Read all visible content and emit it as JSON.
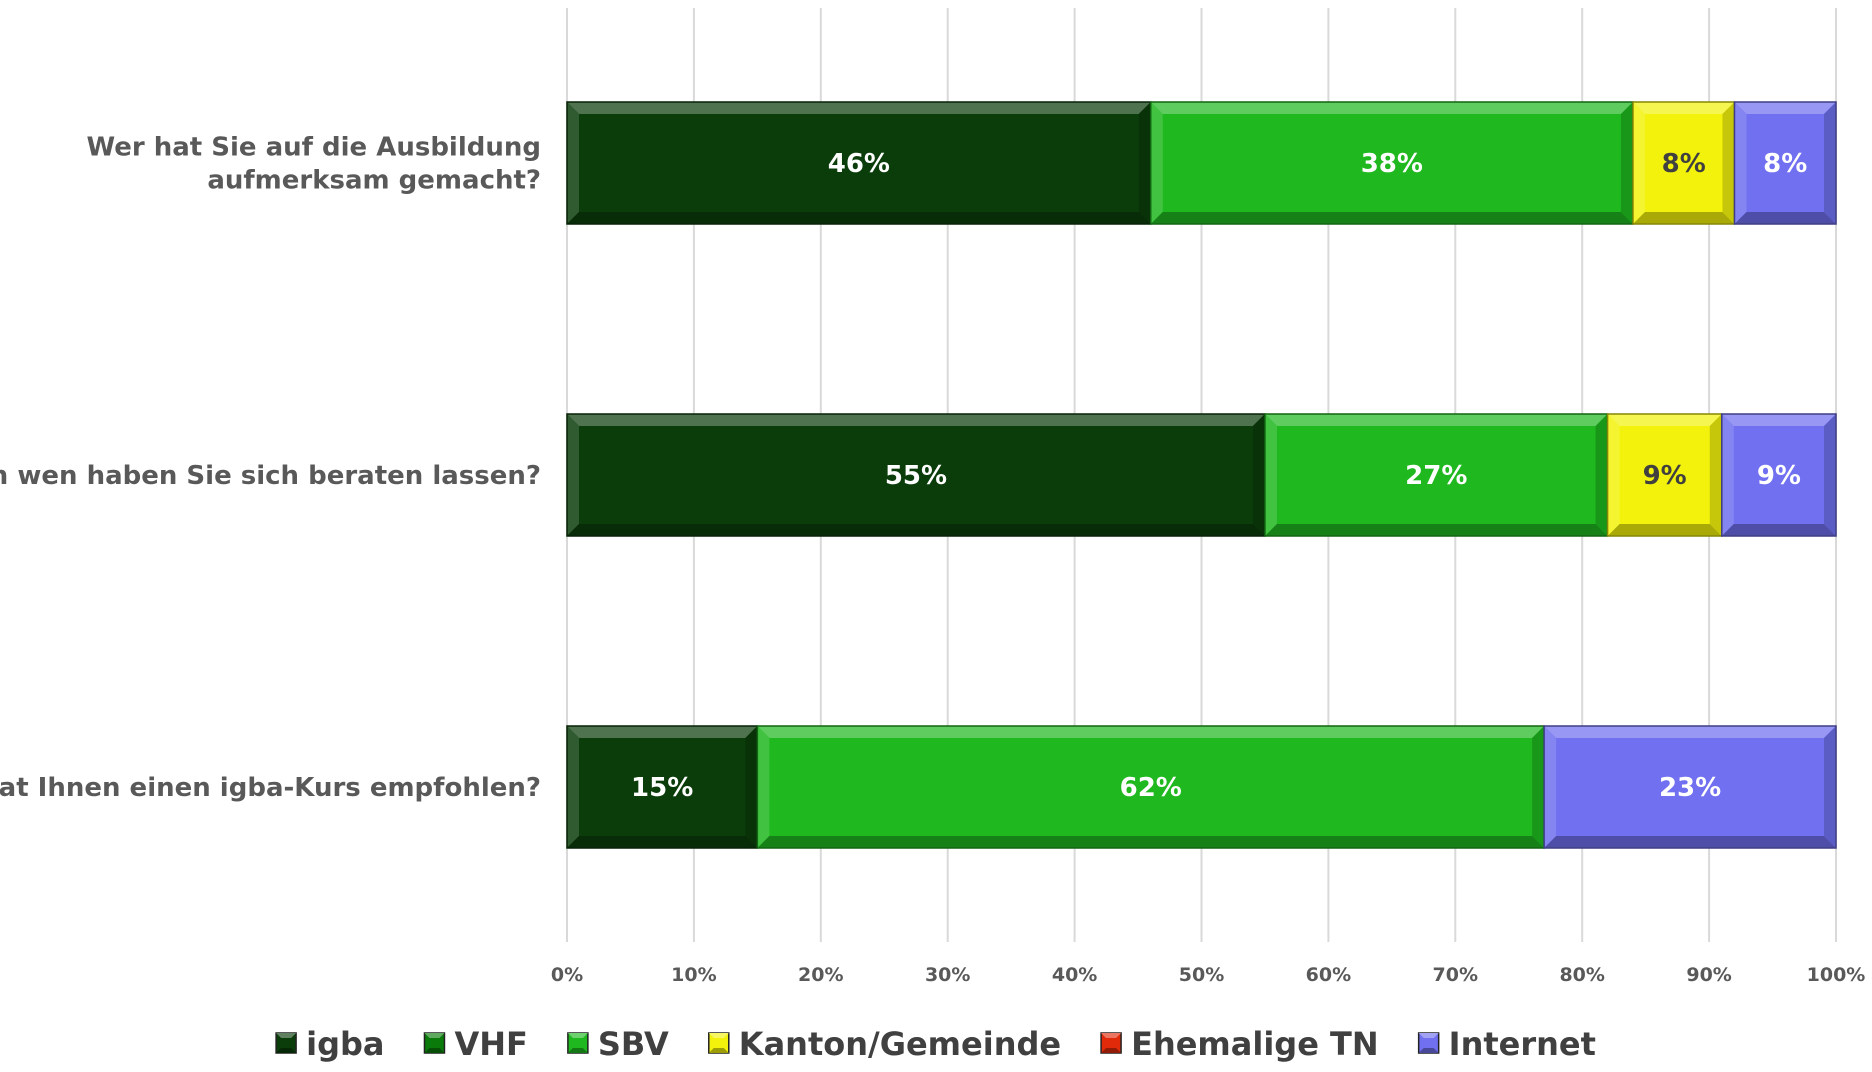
{
  "chart_data": {
    "type": "bar",
    "orientation": "horizontal",
    "stacked": "percent",
    "categories": [
      [
        "Wer hat Sie auf die Ausbildung",
        "aufmerksam gemacht?"
      ],
      [
        "Durch wen haben Sie sich beraten lassen?"
      ],
      [
        "Wer hat Ihnen einen igba-Kurs empfohlen?"
      ]
    ],
    "series": [
      {
        "name": "igba",
        "color": "#0b3d0b",
        "values": [
          46,
          55,
          15
        ],
        "labels": [
          "46%",
          "55%",
          "15%"
        ],
        "label_color": "#ffffff"
      },
      {
        "name": "VHF",
        "color": "#0a7a0a",
        "values": [
          0,
          0,
          0
        ],
        "labels": [
          "",
          "",
          ""
        ],
        "label_color": "#ffffff"
      },
      {
        "name": "SBV",
        "color": "#1fb81f",
        "values": [
          38,
          27,
          62
        ],
        "labels": [
          "38%",
          "27%",
          "62%"
        ],
        "label_color": "#ffffff"
      },
      {
        "name": "Kanton/Gemeinde",
        "color": "#f2f20c",
        "values": [
          8,
          9,
          0
        ],
        "labels": [
          "8%",
          "9%",
          ""
        ],
        "label_color": "#404040"
      },
      {
        "name": "Ehemalige TN",
        "color": "#e02a0a",
        "values": [
          0,
          0,
          0
        ],
        "labels": [
          "",
          "",
          ""
        ],
        "label_color": "#ffffff"
      },
      {
        "name": "Internet",
        "color": "#7070f0",
        "values": [
          8,
          9,
          23
        ],
        "labels": [
          "8%",
          "9%",
          "23%"
        ],
        "label_color": "#ffffff"
      }
    ],
    "x_ticks": [
      "0%",
      "10%",
      "20%",
      "30%",
      "40%",
      "50%",
      "60%",
      "70%",
      "80%",
      "90%",
      "100%"
    ],
    "xlim": [
      0,
      100
    ],
    "grid": "vertical",
    "legend": "bottom"
  }
}
